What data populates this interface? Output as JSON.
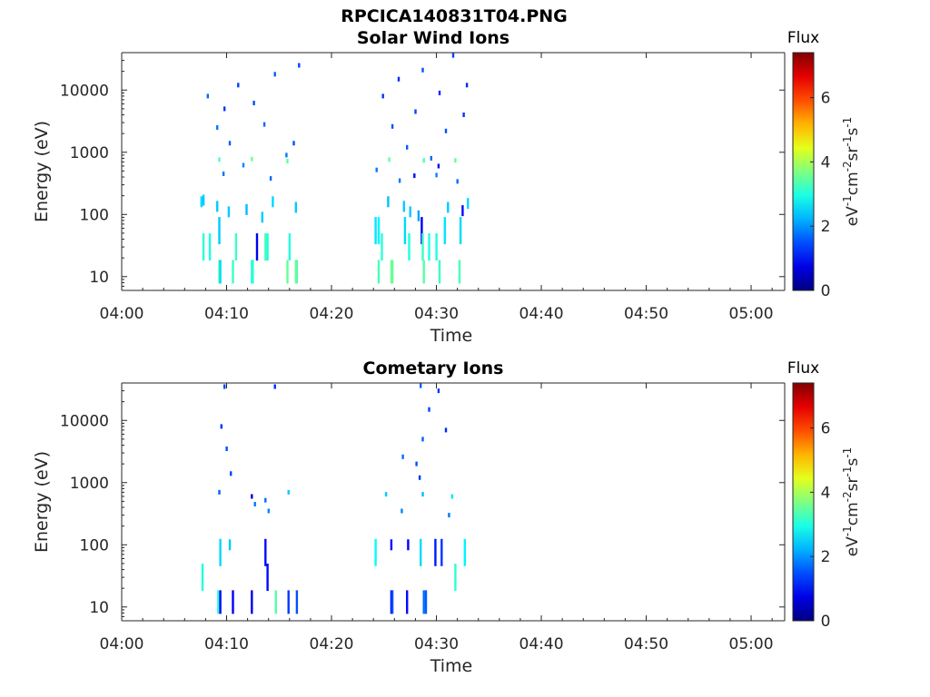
{
  "figure": {
    "title": "RPCICA140831T04.PNG"
  },
  "colorbar": {
    "title": "Flux",
    "unit_parts": [
      "eV",
      "-1",
      "cm",
      "-2",
      "sr",
      "-1",
      "s",
      "-1"
    ],
    "ticks": [
      "0",
      "2",
      "4",
      "6"
    ],
    "range": [
      0,
      7.4
    ]
  },
  "chart_data": [
    {
      "type": "heatmap",
      "title": "Solar Wind Ions",
      "xlabel": "Time",
      "ylabel": "Energy (eV)",
      "x_ticks": [
        "04:00",
        "04:10",
        "04:20",
        "04:30",
        "04:40",
        "04:50",
        "05:00"
      ],
      "x_tick_minutes": [
        0,
        10,
        20,
        30,
        40,
        50,
        60
      ],
      "xlim_minutes": [
        0,
        63.2
      ],
      "y_scale": "log",
      "y_ticks": [
        "10",
        "100",
        "1000",
        "10000"
      ],
      "y_tick_values": [
        10,
        100,
        1000,
        10000
      ],
      "ylim": [
        6,
        40000
      ],
      "colorbar_label": "Flux",
      "cells_format": "[time_min, energy_eV, flux]",
      "cells": [
        [
          9.2,
          12,
          3.4
        ],
        [
          9.3,
          12,
          2.5
        ],
        [
          10.5,
          12,
          3.2
        ],
        [
          12.3,
          12,
          3.0
        ],
        [
          12.4,
          12,
          3.1
        ],
        [
          15.7,
          12,
          3.5
        ],
        [
          16.5,
          12,
          3.6
        ],
        [
          16.6,
          12,
          3.4
        ],
        [
          24.4,
          12,
          3.3
        ],
        [
          25.6,
          12,
          3.6
        ],
        [
          25.7,
          12,
          3.5
        ],
        [
          28.7,
          12,
          3.4
        ],
        [
          30.2,
          12,
          3.2
        ],
        [
          32.1,
          12,
          3.3
        ],
        [
          7.7,
          30,
          3.1
        ],
        [
          8.3,
          30,
          3.0
        ],
        [
          10.8,
          30,
          3.2
        ],
        [
          12.8,
          30,
          0.8
        ],
        [
          13.6,
          30,
          3.3
        ],
        [
          13.8,
          30,
          3.0
        ],
        [
          15.9,
          30,
          3.0
        ],
        [
          24.1,
          55,
          2.6
        ],
        [
          24.4,
          55,
          2.7
        ],
        [
          26.9,
          55,
          2.5
        ],
        [
          28.5,
          55,
          0.9
        ],
        [
          30.7,
          55,
          2.6
        ],
        [
          32.2,
          55,
          2.5
        ],
        [
          9.2,
          55,
          2.4
        ],
        [
          24.7,
          30,
          3.1
        ],
        [
          27.3,
          30,
          3.0
        ],
        [
          28.6,
          30,
          3.2
        ],
        [
          29.2,
          30,
          3.0
        ],
        [
          29.9,
          30,
          3.0
        ],
        [
          7.5,
          160,
          2.5
        ],
        [
          7.7,
          170,
          2.4
        ],
        [
          9.0,
          135,
          2.4
        ],
        [
          10.1,
          110,
          2.4
        ],
        [
          11.8,
          120,
          2.3
        ],
        [
          13.3,
          90,
          2.4
        ],
        [
          14.3,
          160,
          2.5
        ],
        [
          16.5,
          130,
          2.4
        ],
        [
          25.3,
          160,
          2.3
        ],
        [
          26.8,
          135,
          2.4
        ],
        [
          27.4,
          110,
          2.4
        ],
        [
          28.2,
          95,
          2.1
        ],
        [
          31.0,
          130,
          2.4
        ],
        [
          32.4,
          115,
          1.0
        ],
        [
          32.9,
          150,
          2.5
        ],
        [
          9.2,
          760,
          3.4
        ],
        [
          12.3,
          780,
          3.6
        ],
        [
          15.7,
          720,
          3.5
        ],
        [
          25.4,
          760,
          3.5
        ],
        [
          28.7,
          740,
          3.3
        ],
        [
          31.7,
          740,
          3.5
        ],
        [
          8.1,
          8000,
          1.7
        ],
        [
          9.0,
          2500,
          1.8
        ],
        [
          9.7,
          5000,
          1.3
        ],
        [
          10.2,
          1400,
          1.6
        ],
        [
          11.0,
          12000,
          1.4
        ],
        [
          12.5,
          6200,
          1.5
        ],
        [
          13.5,
          2800,
          1.7
        ],
        [
          14.5,
          18000,
          1.6
        ],
        [
          15.6,
          900,
          1.8
        ],
        [
          16.3,
          1400,
          1.5
        ],
        [
          16.8,
          25000,
          1.4
        ],
        [
          24.8,
          8000,
          1.3
        ],
        [
          25.7,
          2600,
          1.5
        ],
        [
          26.3,
          15000,
          1.2
        ],
        [
          27.1,
          1200,
          1.6
        ],
        [
          27.9,
          4500,
          1.4
        ],
        [
          28.6,
          21000,
          1.5
        ],
        [
          29.4,
          800,
          1.7
        ],
        [
          30.2,
          9000,
          1.2
        ],
        [
          30.8,
          2200,
          1.5
        ],
        [
          31.5,
          36000,
          1.4
        ],
        [
          32.5,
          4000,
          1.3
        ],
        [
          32.8,
          12000,
          1.2
        ],
        [
          27.8,
          420,
          1.0
        ],
        [
          30.1,
          600,
          0.9
        ],
        [
          9.6,
          450,
          1.8
        ],
        [
          11.5,
          620,
          1.9
        ],
        [
          14.1,
          380,
          1.7
        ],
        [
          24.2,
          520,
          1.8
        ],
        [
          26.4,
          350,
          1.8
        ],
        [
          29.9,
          430,
          1.9
        ],
        [
          31.9,
          340,
          1.7
        ]
      ]
    },
    {
      "type": "heatmap",
      "title": "Cometary Ions",
      "xlabel": "Time",
      "ylabel": "Energy (eV)",
      "x_ticks": [
        "04:00",
        "04:10",
        "04:20",
        "04:30",
        "04:40",
        "04:50",
        "05:00"
      ],
      "x_tick_minutes": [
        0,
        10,
        20,
        30,
        40,
        50,
        60
      ],
      "xlim_minutes": [
        0,
        63.2
      ],
      "y_scale": "log",
      "y_ticks": [
        "10",
        "100",
        "1000",
        "10000"
      ],
      "y_tick_values": [
        10,
        100,
        1000,
        10000
      ],
      "ylim": [
        6,
        40000
      ],
      "colorbar_label": "Flux",
      "cells_format": "[time_min, energy_eV, flux]",
      "cells": [
        [
          9.1,
          12,
          3.1
        ],
        [
          9.3,
          12,
          1.0
        ],
        [
          10.5,
          12,
          0.9
        ],
        [
          12.3,
          12,
          0.8
        ],
        [
          14.6,
          12,
          3.4
        ],
        [
          15.8,
          12,
          1.3
        ],
        [
          16.6,
          12,
          1.5
        ],
        [
          25.6,
          12,
          1.0
        ],
        [
          25.7,
          12,
          1.5
        ],
        [
          27.1,
          12,
          1.0
        ],
        [
          28.7,
          12,
          1.7
        ],
        [
          28.9,
          12,
          1.6
        ],
        [
          7.6,
          30,
          3.0
        ],
        [
          13.8,
          30,
          1.0
        ],
        [
          31.7,
          30,
          3.1
        ],
        [
          9.3,
          75,
          2.5
        ],
        [
          10.2,
          100,
          2.4
        ],
        [
          13.6,
          75,
          1.0
        ],
        [
          24.1,
          75,
          2.8
        ],
        [
          25.6,
          100,
          1.0
        ],
        [
          27.2,
          100,
          0.9
        ],
        [
          28.4,
          75,
          2.5
        ],
        [
          29.8,
          75,
          1.1
        ],
        [
          30.4,
          75,
          1.3
        ],
        [
          32.6,
          75,
          2.7
        ],
        [
          12.3,
          600,
          0.5
        ],
        [
          12.6,
          450,
          1.8
        ],
        [
          13.6,
          520,
          1.7
        ],
        [
          13.9,
          350,
          1.9
        ],
        [
          15.8,
          700,
          2.4
        ],
        [
          25.1,
          650,
          2.4
        ],
        [
          26.6,
          350,
          1.9
        ],
        [
          28.6,
          650,
          2.3
        ],
        [
          31.1,
          300,
          1.8
        ],
        [
          31.4,
          600,
          2.6
        ],
        [
          9.7,
          35000,
          1.4
        ],
        [
          9.4,
          8000,
          1.3
        ],
        [
          9.9,
          3500,
          1.5
        ],
        [
          10.3,
          1400,
          1.4
        ],
        [
          14.5,
          35000,
          1.2
        ],
        [
          9.2,
          700,
          1.6
        ],
        [
          28.4,
          36000,
          1.6
        ],
        [
          29.2,
          15000,
          1.4
        ],
        [
          26.7,
          2600,
          1.7
        ],
        [
          28.0,
          2000,
          1.5
        ],
        [
          28.3,
          1200,
          1.3
        ],
        [
          28.6,
          5000,
          1.6
        ],
        [
          30.8,
          7000,
          1.2
        ],
        [
          30.1,
          30000,
          1.3
        ]
      ]
    }
  ]
}
